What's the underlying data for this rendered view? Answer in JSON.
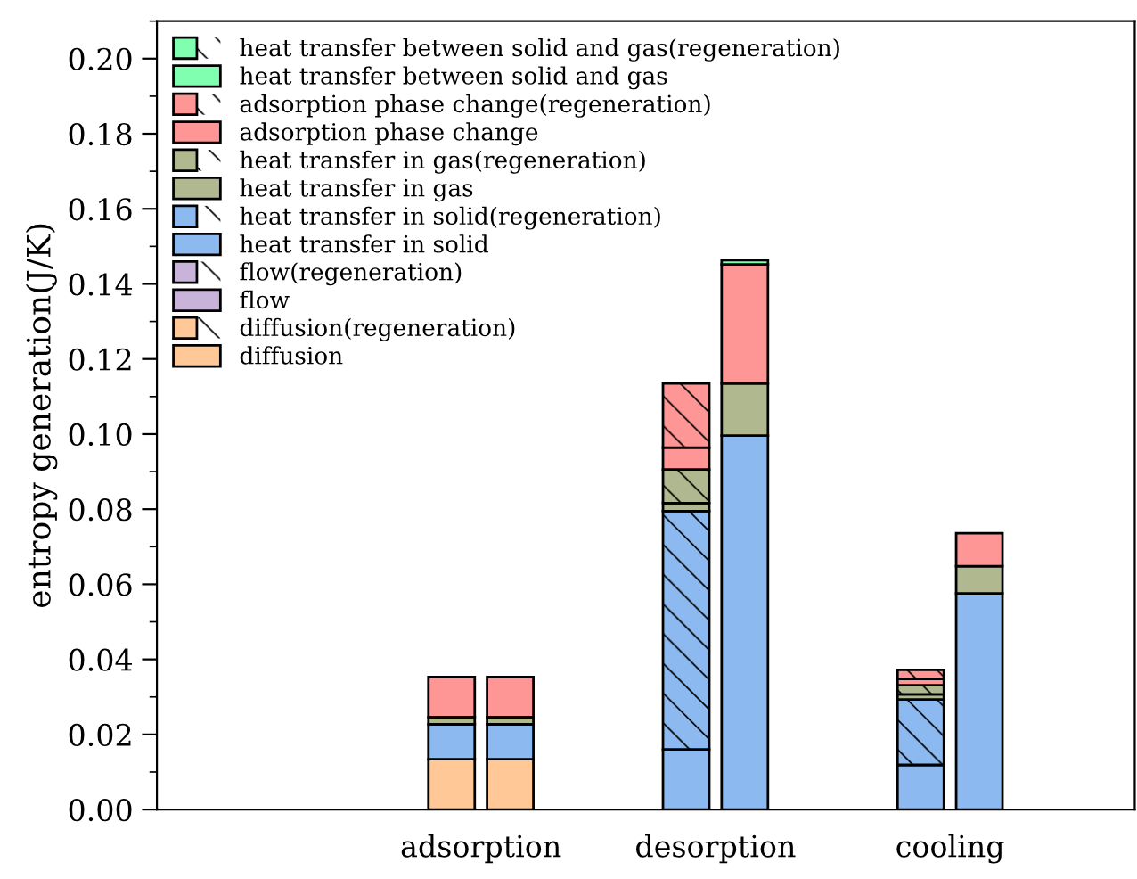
{
  "chart_data": {
    "type": "bar",
    "stacked": true,
    "ylabel": "entropy generation(J/K)",
    "categories": [
      null,
      null,
      null,
      null,
      null,
      null,
      null,
      null,
      null,
      null,
      null,
      "adsorption",
      null,
      null,
      null,
      null,
      null,
      null,
      null,
      "desorption",
      null,
      null,
      null,
      null,
      null,
      null,
      null,
      "cooling",
      null
    ],
    "ylim": [
      0,
      0.21
    ],
    "yticks": [
      {
        "value": 0,
        "label": "0.00"
      },
      {
        "value": 0.02,
        "label": "0.02"
      },
      {
        "value": 0.04,
        "label": "0.04"
      },
      {
        "value": 0.06,
        "label": "0.06"
      },
      {
        "value": 0.08,
        "label": "0.08"
      },
      {
        "value": 0.1,
        "label": "0.10"
      },
      {
        "value": 0.12,
        "label": "0.12"
      },
      {
        "value": 0.14,
        "label": "0.14"
      },
      {
        "value": 0.16,
        "label": "0.16"
      },
      {
        "value": 0.18,
        "label": "0.18"
      },
      {
        "value": 0.2,
        "label": "0.20"
      }
    ],
    "legend": "top left",
    "grid": false,
    "series": [
      {
        "name": "diffusion",
        "color": "#ffc896",
        "values": [
          null,
          null,
          null,
          null,
          null,
          null,
          null,
          null,
          null,
          null,
          0.0134,
          null,
          0.0134,
          null,
          null,
          null,
          null,
          null,
          0,
          null,
          0,
          null,
          null,
          null,
          null,
          null,
          0,
          null,
          0
        ]
      },
      {
        "name": "diffusion(regeneration)",
        "color": "#ffc896",
        "values": [
          null,
          null,
          null,
          null,
          null,
          null,
          null,
          null,
          null,
          null,
          0,
          null,
          0,
          null,
          null,
          null,
          null,
          null,
          0,
          null,
          0,
          null,
          null,
          null,
          null,
          null,
          0,
          null,
          0
        ]
      },
      {
        "name": "flow",
        "color": "#c8b4d8",
        "values": [
          null,
          null,
          null,
          null,
          null,
          null,
          null,
          null,
          null,
          null,
          0,
          null,
          0,
          null,
          null,
          null,
          null,
          null,
          0,
          null,
          0,
          null,
          null,
          null,
          null,
          null,
          0,
          null,
          0
        ]
      },
      {
        "name": "flow(regeneration)",
        "color": "#c8b4d8",
        "values": [
          null,
          null,
          null,
          null,
          null,
          null,
          null,
          null,
          null,
          null,
          0,
          null,
          0,
          null,
          null,
          null,
          null,
          null,
          0,
          null,
          0,
          null,
          null,
          null,
          null,
          null,
          0,
          null,
          0
        ]
      },
      {
        "name": "heat transfer in solid",
        "color": "#8cbaf0",
        "values": [
          null,
          null,
          null,
          null,
          null,
          null,
          null,
          null,
          null,
          null,
          0.0093,
          null,
          0.0093,
          null,
          null,
          null,
          null,
          null,
          0.016,
          null,
          0.0996,
          null,
          null,
          null,
          null,
          null,
          0.0119,
          null,
          0.0576
        ]
      },
      {
        "name": "heat transfer in solid(regeneration)",
        "color": "#8cbaf0",
        "values": [
          null,
          null,
          null,
          null,
          null,
          null,
          null,
          null,
          null,
          null,
          0,
          null,
          0,
          null,
          null,
          null,
          null,
          null,
          0.0635,
          null,
          0,
          null,
          null,
          null,
          null,
          null,
          0.0174,
          null,
          0
        ]
      },
      {
        "name": "heat transfer in gas",
        "color": "#b0b890",
        "values": [
          null,
          null,
          null,
          null,
          null,
          null,
          null,
          null,
          null,
          null,
          0.0019,
          null,
          0.0019,
          null,
          null,
          null,
          null,
          null,
          0.0021,
          null,
          0.0139,
          null,
          null,
          null,
          null,
          null,
          0.0014,
          null,
          0.0072
        ]
      },
      {
        "name": "heat transfer in gas(regeneration)",
        "color": "#b0b890",
        "values": [
          null,
          null,
          null,
          null,
          null,
          null,
          null,
          null,
          null,
          null,
          0,
          null,
          0,
          null,
          null,
          null,
          null,
          null,
          0.009,
          null,
          0,
          null,
          null,
          null,
          null,
          null,
          0.0024,
          null,
          0
        ]
      },
      {
        "name": "adsorption phase change",
        "color": "#ff9696",
        "values": [
          null,
          null,
          null,
          null,
          null,
          null,
          null,
          null,
          null,
          null,
          0.0107,
          null,
          0.0107,
          null,
          null,
          null,
          null,
          null,
          0.0058,
          null,
          0.0317,
          null,
          null,
          null,
          null,
          null,
          0.0017,
          null,
          0.0088
        ]
      },
      {
        "name": "adsorption phase change(regeneration)",
        "color": "#ff9696",
        "values": [
          null,
          null,
          null,
          null,
          null,
          null,
          null,
          null,
          null,
          null,
          0,
          null,
          0,
          null,
          null,
          null,
          null,
          null,
          0.0171,
          null,
          0,
          null,
          null,
          null,
          null,
          null,
          0.0024,
          null,
          0
        ]
      },
      {
        "name": "heat transfer between solid and gas",
        "color": "#80ffb0",
        "values": [
          null,
          null,
          null,
          null,
          null,
          null,
          null,
          null,
          null,
          null,
          0,
          null,
          0,
          null,
          null,
          null,
          null,
          null,
          0,
          null,
          0.0011,
          null,
          null,
          null,
          null,
          null,
          0,
          null,
          0
        ]
      },
      {
        "name": "heat transfer between solid and gas(regeneration)",
        "color": "#80ffb0",
        "values": [
          null,
          null,
          null,
          null,
          null,
          null,
          null,
          null,
          null,
          null,
          0,
          null,
          0,
          null,
          null,
          null,
          null,
          null,
          0,
          null,
          0,
          null,
          null,
          null,
          null,
          null,
          0,
          null,
          0
        ]
      }
    ]
  }
}
